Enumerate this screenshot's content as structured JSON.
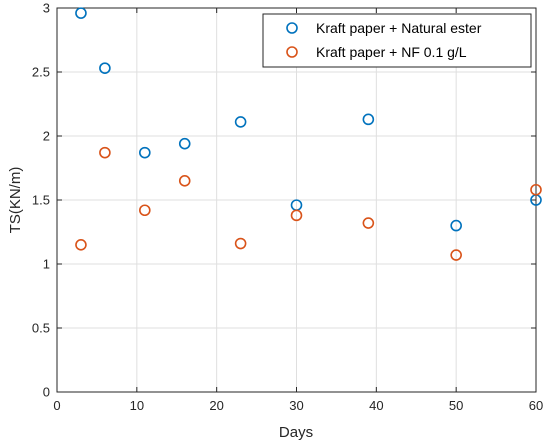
{
  "chart_data": {
    "type": "scatter",
    "title": "",
    "xlabel": "Days",
    "ylabel": "TS(KN/m)",
    "xlim": [
      0,
      60
    ],
    "ylim": [
      0,
      3
    ],
    "xticks": [
      0,
      10,
      20,
      30,
      40,
      50,
      60
    ],
    "yticks": [
      0,
      0.5,
      1,
      1.5,
      2,
      2.5,
      3
    ],
    "xtick_labels": [
      "0",
      "10",
      "20",
      "30",
      "40",
      "50",
      "60"
    ],
    "ytick_labels": [
      "0",
      "0.5",
      "1",
      "1.5",
      "2",
      "2.5",
      "3"
    ],
    "grid": true,
    "legend_position": "top-right",
    "series": [
      {
        "name": "Kraft paper + Natural ester",
        "color": "#0072BD",
        "marker": "open-circle",
        "x": [
          3,
          6,
          11,
          16,
          23,
          30,
          39,
          50,
          60
        ],
        "y": [
          2.96,
          2.53,
          1.87,
          1.94,
          2.11,
          1.46,
          2.13,
          1.3,
          1.5
        ]
      },
      {
        "name": "Kraft paper + NF 0.1 g/L",
        "color": "#D95319",
        "marker": "open-circle",
        "x": [
          3,
          6,
          11,
          16,
          23,
          30,
          39,
          50,
          60
        ],
        "y": [
          1.15,
          1.87,
          1.42,
          1.65,
          1.16,
          1.38,
          1.32,
          1.07,
          1.58
        ]
      }
    ]
  }
}
